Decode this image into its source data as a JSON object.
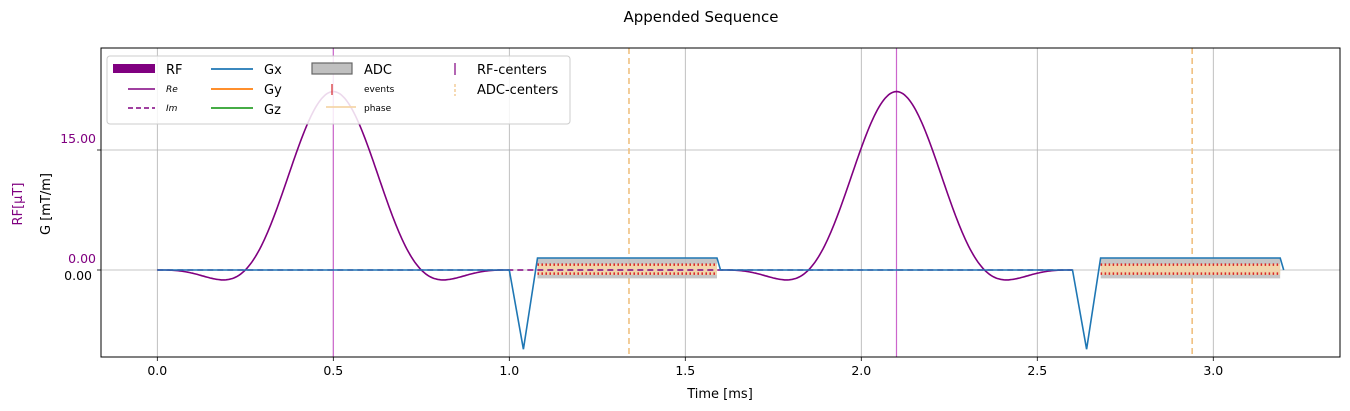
{
  "chart_data": {
    "type": "line",
    "title": "Appended Sequence",
    "xlabel": "Time [ms]",
    "ylabel_g": "G [mT/m]",
    "ylabel_rf": "RF[μT]",
    "xlim": [
      -0.16,
      3.36
    ],
    "ylim": [
      -0.96,
      1.23
    ],
    "grid": true,
    "legend_placement": "top-left",
    "x_ticks": [
      0.0,
      0.5,
      1.0,
      1.5,
      2.0,
      2.5,
      3.0
    ],
    "x_tick_labels": [
      "0.0",
      "0.5",
      "1.0",
      "1.5",
      "2.0",
      "2.5",
      "3.0"
    ],
    "rf_tick_values": [
      0.0,
      15.0
    ],
    "rf_tick_labels": [
      "0.00",
      "15.00"
    ],
    "g_tick_values": [
      0.0
    ],
    "g_tick_labels": [
      "0.00"
    ],
    "rf_pulses": [
      {
        "center": 0.5,
        "start": 0.0,
        "end": 1.0,
        "peak": 22.3
      },
      {
        "center": 2.1,
        "start": 1.6,
        "end": 2.6,
        "peak": 22.3
      }
    ],
    "gx_waveform": [
      [
        0.0,
        0.0
      ],
      [
        1.0,
        0.0
      ],
      [
        1.04,
        -0.66
      ],
      [
        1.08,
        0.1
      ],
      [
        1.59,
        0.1
      ],
      [
        1.6,
        0.0
      ],
      [
        2.6,
        0.0
      ],
      [
        2.64,
        -0.66
      ],
      [
        2.68,
        0.1
      ],
      [
        3.19,
        0.1
      ],
      [
        3.2,
        0.0
      ]
    ],
    "adc_blocks": [
      {
        "start": 1.08,
        "end": 1.59,
        "center": 1.34
      },
      {
        "start": 2.68,
        "end": 3.19,
        "center": 2.94
      }
    ],
    "rf_centers": [
      0.5,
      2.1
    ],
    "adc_centers": [
      1.34,
      2.94
    ],
    "colors": {
      "rf": "#800080",
      "gx": "#1f77b4",
      "gy": "#ff7f0e",
      "gz": "#2ca02c",
      "adc_fill": "#c0c0c0",
      "adc_events": "#d62728",
      "adc_phase": "#f5d6a8",
      "rf_centers": "#cc66cc",
      "adc_centers": "#f0c080",
      "grid": "#b0b0b0"
    },
    "legend": [
      {
        "label": "RF",
        "kind": "rf"
      },
      {
        "label": "Re",
        "kind": "re"
      },
      {
        "label": "Im",
        "kind": "im"
      },
      {
        "label": "Gx",
        "kind": "gx"
      },
      {
        "label": "Gy",
        "kind": "gy"
      },
      {
        "label": "Gz",
        "kind": "gz"
      },
      {
        "label": "ADC",
        "kind": "adc"
      },
      {
        "label": "events",
        "kind": "events"
      },
      {
        "label": "phase",
        "kind": "phase"
      },
      {
        "label": "RF-centers",
        "kind": "rfc"
      },
      {
        "label": "ADC-centers",
        "kind": "adcc"
      }
    ]
  }
}
